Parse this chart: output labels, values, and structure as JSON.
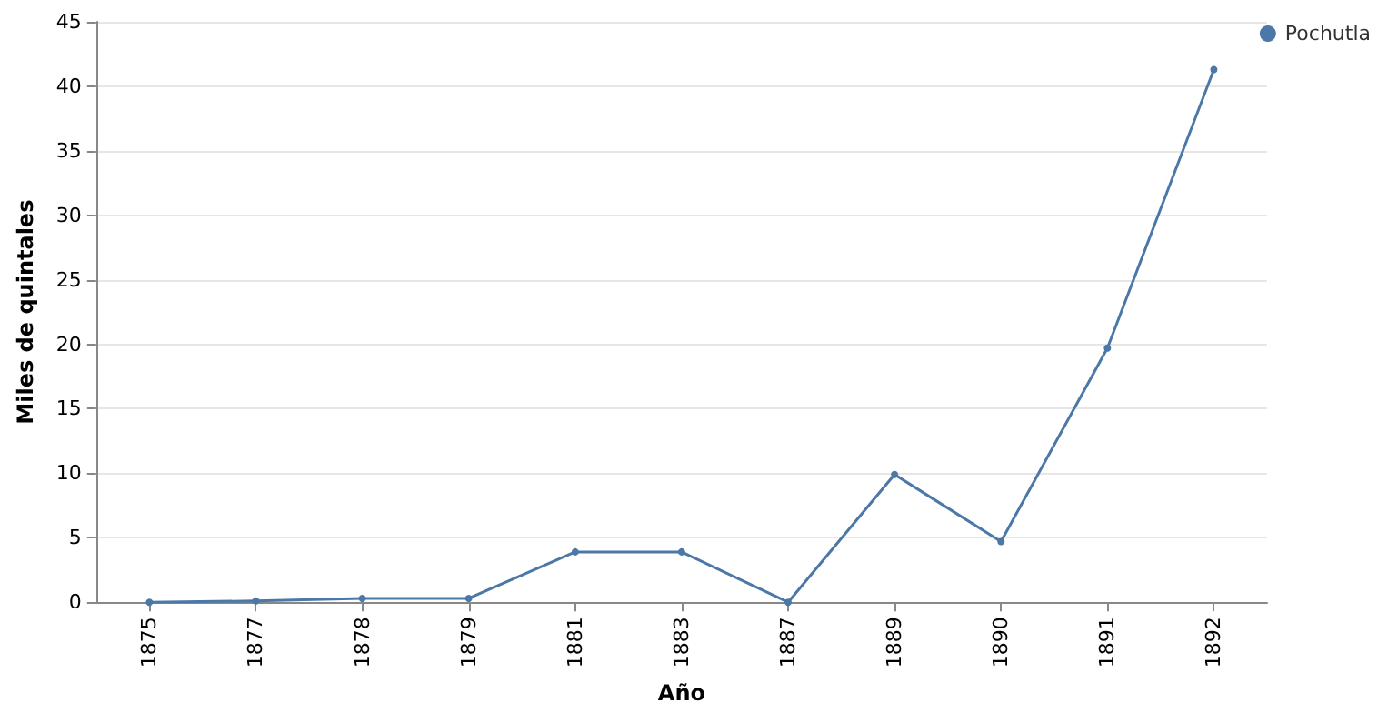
{
  "chart_data": {
    "type": "line",
    "xlabel": "Año",
    "ylabel": "Miles de quintales",
    "categories": [
      "1875",
      "1877",
      "1878",
      "1879",
      "1881",
      "1883",
      "1887",
      "1889",
      "1890",
      "1891",
      "1892"
    ],
    "series": [
      {
        "name": "Pochutla",
        "color": "#4c78a8",
        "values": [
          0,
          0.1,
          0.3,
          0.3,
          3.9,
          3.9,
          0,
          9.9,
          4.7,
          19.7,
          41.3
        ]
      }
    ],
    "ylim": [
      0,
      45
    ],
    "yticks": [
      0,
      5,
      10,
      15,
      20,
      25,
      30,
      35,
      40,
      45
    ],
    "grid": "y",
    "legend": "top right",
    "marker": "circle",
    "line_style": "solid"
  }
}
